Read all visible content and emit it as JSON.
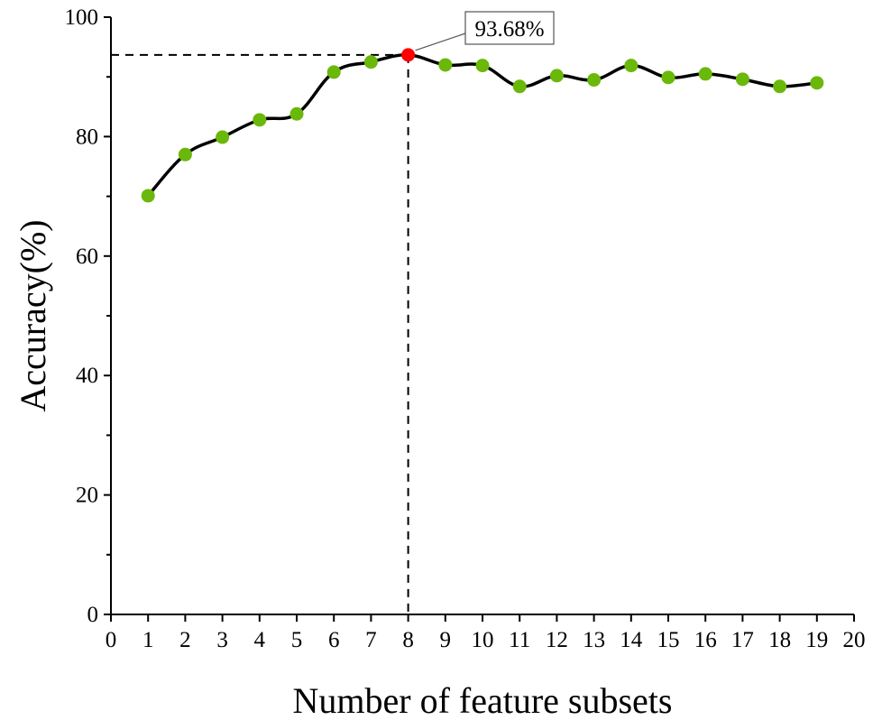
{
  "chart_data": {
    "type": "line",
    "title": "",
    "xlabel": "Number of feature subsets",
    "ylabel": "Accuracy(%)",
    "xlim": [
      0,
      20
    ],
    "ylim": [
      0,
      100
    ],
    "x_ticks": [
      0,
      1,
      2,
      3,
      4,
      5,
      6,
      7,
      8,
      9,
      10,
      11,
      12,
      13,
      14,
      15,
      16,
      17,
      18,
      19,
      20
    ],
    "y_ticks": [
      0,
      20,
      40,
      60,
      80,
      100
    ],
    "grid": false,
    "legend": "none",
    "series": [
      {
        "x": [
          1,
          2,
          3,
          4,
          5,
          6,
          7,
          8,
          9,
          10,
          11,
          12,
          13,
          14,
          15,
          16,
          17,
          18,
          19
        ],
        "values": [
          70.1,
          77.0,
          79.9,
          82.8,
          83.8,
          90.8,
          92.5,
          93.68,
          92.0,
          91.9,
          88.4,
          90.2,
          89.5,
          91.9,
          89.9,
          90.5,
          89.6,
          88.4,
          89.0
        ]
      }
    ],
    "highlight": {
      "x": 8,
      "y": 93.68,
      "label": "93.68%"
    },
    "colors": {
      "line": "#000000",
      "marker": "#6ab80a",
      "highlight": "#ff0000"
    }
  }
}
